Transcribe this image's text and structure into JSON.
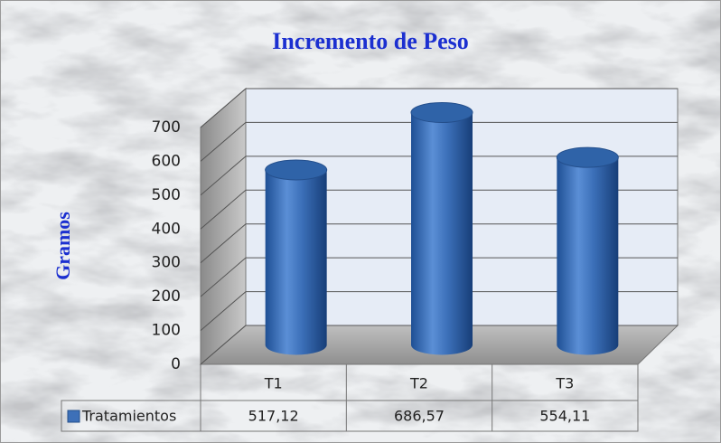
{
  "chart_data": {
    "type": "bar3d",
    "title": "Incremento de Peso",
    "y_label": "Gramos",
    "categories": [
      "T1",
      "T2",
      "T3"
    ],
    "series": [
      {
        "name": "Tratamientos",
        "color": "#3d70b8",
        "values": [
          517.12,
          686.57,
          554.11
        ],
        "value_labels": [
          "517,12",
          "686,57",
          "554,11"
        ]
      }
    ],
    "ylim": [
      0,
      700
    ],
    "yticks": [
      0,
      100,
      200,
      300,
      400,
      500,
      600,
      700
    ],
    "grid": true
  }
}
